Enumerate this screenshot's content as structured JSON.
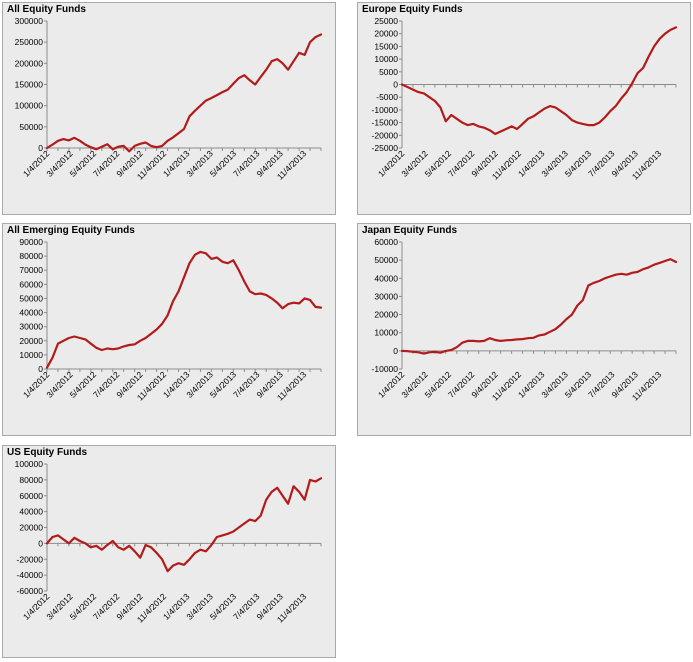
{
  "colors": {
    "series": "#b31b1b",
    "panel_bg": "#ebebeb",
    "axis": "#8c8c8c"
  },
  "chart_data": [
    {
      "type": "line",
      "title": "All Equity Funds",
      "ylim": [
        0,
        300000
      ],
      "yticks": [
        0,
        50000,
        100000,
        150000,
        200000,
        250000,
        300000
      ],
      "ytick_labels": [
        "0",
        "50000",
        "100000",
        "150000",
        "200000",
        "250000",
        "300000"
      ],
      "xtick_labels": [
        "1/4/2012",
        "3/4/2012",
        "5/4/2012",
        "7/4/2012",
        "9/4/2012",
        "11/4/2012",
        "1/4/2013",
        "3/4/2013",
        "5/4/2013",
        "7/4/2013",
        "9/4/2013",
        "11/4/2013"
      ],
      "x_range_weeks": [
        0,
        100
      ],
      "series": [
        {
          "x": [
            0,
            2,
            4,
            6,
            8,
            10,
            12,
            14,
            16,
            18,
            20,
            22,
            24,
            26,
            28,
            30,
            32,
            34,
            36,
            38,
            40,
            42,
            44,
            46,
            48,
            50,
            52,
            54,
            56,
            58,
            60,
            62,
            64,
            66,
            68,
            70,
            72,
            74,
            76,
            78,
            80,
            82,
            84,
            86,
            88,
            90,
            92,
            94,
            96,
            98,
            100
          ],
          "values": [
            0,
            8000,
            17000,
            21000,
            18000,
            24000,
            17000,
            8000,
            2000,
            -3000,
            3000,
            9000,
            -3000,
            3000,
            5000,
            -8000,
            5000,
            10000,
            13000,
            5000,
            2000,
            5000,
            17000,
            25000,
            35000,
            45000,
            75000,
            88000,
            100000,
            112000,
            118000,
            125000,
            132000,
            138000,
            152000,
            165000,
            172000,
            160000,
            150000,
            168000,
            185000,
            205000,
            210000,
            200000,
            185000,
            205000,
            225000,
            220000,
            250000,
            262000,
            268000
          ]
        }
      ]
    },
    {
      "type": "line",
      "title": "Europe Equity Funds",
      "ylim": [
        -25000,
        25000
      ],
      "yticks": [
        -25000,
        -20000,
        -15000,
        -10000,
        -5000,
        0,
        5000,
        10000,
        15000,
        20000,
        25000
      ],
      "ytick_labels": [
        "-25000",
        "-20000",
        "-15000",
        "-10000",
        "-5000",
        "0",
        "5000",
        "10000",
        "15000",
        "20000",
        "25000"
      ],
      "xtick_labels": [
        "1/4/2012",
        "3/4/2012",
        "5/4/2012",
        "7/4/2012",
        "9/4/2012",
        "11/4/2012",
        "1/4/2013",
        "3/4/2013",
        "5/4/2013",
        "7/4/2013",
        "9/4/2013",
        "11/4/2013"
      ],
      "x_range_weeks": [
        0,
        100
      ],
      "series": [
        {
          "x": [
            0,
            2,
            4,
            6,
            8,
            10,
            12,
            14,
            16,
            18,
            20,
            22,
            24,
            26,
            28,
            30,
            32,
            34,
            36,
            38,
            40,
            42,
            44,
            46,
            48,
            50,
            52,
            54,
            56,
            58,
            60,
            62,
            64,
            66,
            68,
            70,
            72,
            74,
            76,
            78,
            80,
            82,
            84,
            86,
            88,
            90,
            92,
            94,
            96,
            98,
            100
          ],
          "values": [
            0,
            -1000,
            -2000,
            -3000,
            -3500,
            -5000,
            -6500,
            -9000,
            -14500,
            -12000,
            -13500,
            -15000,
            -16000,
            -15500,
            -16500,
            -17000,
            -18000,
            -19500,
            -18500,
            -17500,
            -16500,
            -17500,
            -15500,
            -13500,
            -12500,
            -11000,
            -9500,
            -8500,
            -9000,
            -10500,
            -12000,
            -14000,
            -15000,
            -15500,
            -16000,
            -16000,
            -15000,
            -13000,
            -10500,
            -8500,
            -5500,
            -3000,
            500,
            4500,
            6500,
            11000,
            15000,
            18000,
            20000,
            21500,
            22500
          ]
        }
      ]
    },
    {
      "type": "line",
      "title": "All Emerging Equity Funds",
      "ylim": [
        0,
        90000
      ],
      "yticks": [
        0,
        10000,
        20000,
        30000,
        40000,
        50000,
        60000,
        70000,
        80000,
        90000
      ],
      "ytick_labels": [
        "0",
        "10000",
        "20000",
        "30000",
        "40000",
        "50000",
        "60000",
        "70000",
        "80000",
        "90000"
      ],
      "xtick_labels": [
        "1/4/2012",
        "3/4/2012",
        "5/4/2012",
        "7/4/2012",
        "9/4/2012",
        "11/4/2012",
        "1/4/2013",
        "3/4/2013",
        "5/4/2013",
        "7/4/2013",
        "9/4/2013",
        "11/4/2013"
      ],
      "x_range_weeks": [
        0,
        100
      ],
      "series": [
        {
          "x": [
            0,
            2,
            4,
            6,
            8,
            10,
            12,
            14,
            16,
            18,
            20,
            22,
            24,
            26,
            28,
            30,
            32,
            34,
            36,
            38,
            40,
            42,
            44,
            46,
            48,
            50,
            52,
            54,
            56,
            58,
            60,
            62,
            64,
            66,
            68,
            70,
            72,
            74,
            76,
            78,
            80,
            82,
            84,
            86,
            88,
            90,
            92,
            94,
            96,
            98,
            100
          ],
          "values": [
            1000,
            8000,
            18000,
            20000,
            22000,
            23000,
            22000,
            21000,
            18000,
            15000,
            13500,
            14500,
            14000,
            14500,
            16000,
            17000,
            17500,
            20000,
            22000,
            25000,
            28000,
            32000,
            38000,
            48000,
            55000,
            65000,
            75000,
            81000,
            83000,
            82000,
            78000,
            79000,
            76000,
            75000,
            77000,
            70000,
            62000,
            55000,
            53000,
            53500,
            52500,
            50000,
            47000,
            43000,
            46000,
            47000,
            46500,
            50000,
            49000,
            44000,
            43500
          ]
        }
      ]
    },
    {
      "type": "line",
      "title": "Japan Equity Funds",
      "ylim": [
        -10000,
        60000
      ],
      "yticks": [
        -10000,
        0,
        10000,
        20000,
        30000,
        40000,
        50000,
        60000
      ],
      "ytick_labels": [
        "-10000",
        "0",
        "10000",
        "20000",
        "30000",
        "40000",
        "50000",
        "60000"
      ],
      "xtick_labels": [
        "1/4/2012",
        "3/4/2012",
        "5/4/2012",
        "7/4/2012",
        "9/4/2012",
        "11/4/2012",
        "1/4/2013",
        "3/4/2013",
        "5/4/2013",
        "7/4/2013",
        "9/4/2013",
        "11/4/2013"
      ],
      "x_range_weeks": [
        0,
        100
      ],
      "series": [
        {
          "x": [
            0,
            2,
            4,
            6,
            8,
            10,
            12,
            14,
            16,
            18,
            20,
            22,
            24,
            26,
            28,
            30,
            32,
            34,
            36,
            38,
            40,
            42,
            44,
            46,
            48,
            50,
            52,
            54,
            56,
            58,
            60,
            62,
            64,
            66,
            68,
            70,
            72,
            74,
            76,
            78,
            80,
            82,
            84,
            86,
            88,
            90,
            92,
            94,
            96,
            98,
            100
          ],
          "values": [
            0,
            -200,
            -500,
            -800,
            -1500,
            -800,
            -600,
            -1000,
            0,
            500,
            2000,
            4500,
            5500,
            5500,
            5200,
            5500,
            7000,
            6000,
            5500,
            5800,
            6000,
            6300,
            6500,
            7000,
            7200,
            8500,
            9000,
            10500,
            12000,
            14500,
            17500,
            20000,
            25000,
            28000,
            36000,
            37500,
            38500,
            40000,
            41000,
            42000,
            42500,
            42000,
            43000,
            43500,
            45000,
            46000,
            47500,
            48500,
            49500,
            50500,
            49000
          ]
        }
      ]
    },
    {
      "type": "line",
      "title": "US Equity Funds",
      "ylim": [
        -60000,
        100000
      ],
      "yticks": [
        -60000,
        -40000,
        -20000,
        0,
        20000,
        40000,
        60000,
        80000,
        100000
      ],
      "ytick_labels": [
        "-60000",
        "-40000",
        "-20000",
        "0",
        "20000",
        "40000",
        "60000",
        "80000",
        "100000"
      ],
      "xtick_labels": [
        "1/4/2012",
        "3/4/2012",
        "5/4/2012",
        "7/4/2012",
        "9/4/2012",
        "11/4/2012",
        "1/4/2013",
        "3/4/2013",
        "5/4/2013",
        "7/4/2013",
        "9/4/2013",
        "11/4/2013"
      ],
      "x_range_weeks": [
        0,
        100
      ],
      "series": [
        {
          "x": [
            0,
            2,
            4,
            6,
            8,
            10,
            12,
            14,
            16,
            18,
            20,
            22,
            24,
            26,
            28,
            30,
            32,
            34,
            36,
            38,
            40,
            42,
            44,
            46,
            48,
            50,
            52,
            54,
            56,
            58,
            60,
            62,
            64,
            66,
            68,
            70,
            72,
            74,
            76,
            78,
            80,
            82,
            84,
            86,
            88,
            90,
            92,
            94,
            96,
            98,
            100
          ],
          "values": [
            0,
            8000,
            10000,
            5000,
            0,
            7000,
            3000,
            0,
            -5000,
            -3000,
            -8000,
            -2000,
            3000,
            -5000,
            -8000,
            -3000,
            -10000,
            -18000,
            -2000,
            -5000,
            -12000,
            -20000,
            -35000,
            -28000,
            -25000,
            -27000,
            -20000,
            -12000,
            -8000,
            -10000,
            -2000,
            8000,
            10000,
            12000,
            15000,
            20000,
            25000,
            30000,
            28000,
            35000,
            55000,
            65000,
            70000,
            60000,
            50000,
            72000,
            65000,
            55000,
            80000,
            78000,
            82000
          ]
        }
      ]
    }
  ]
}
